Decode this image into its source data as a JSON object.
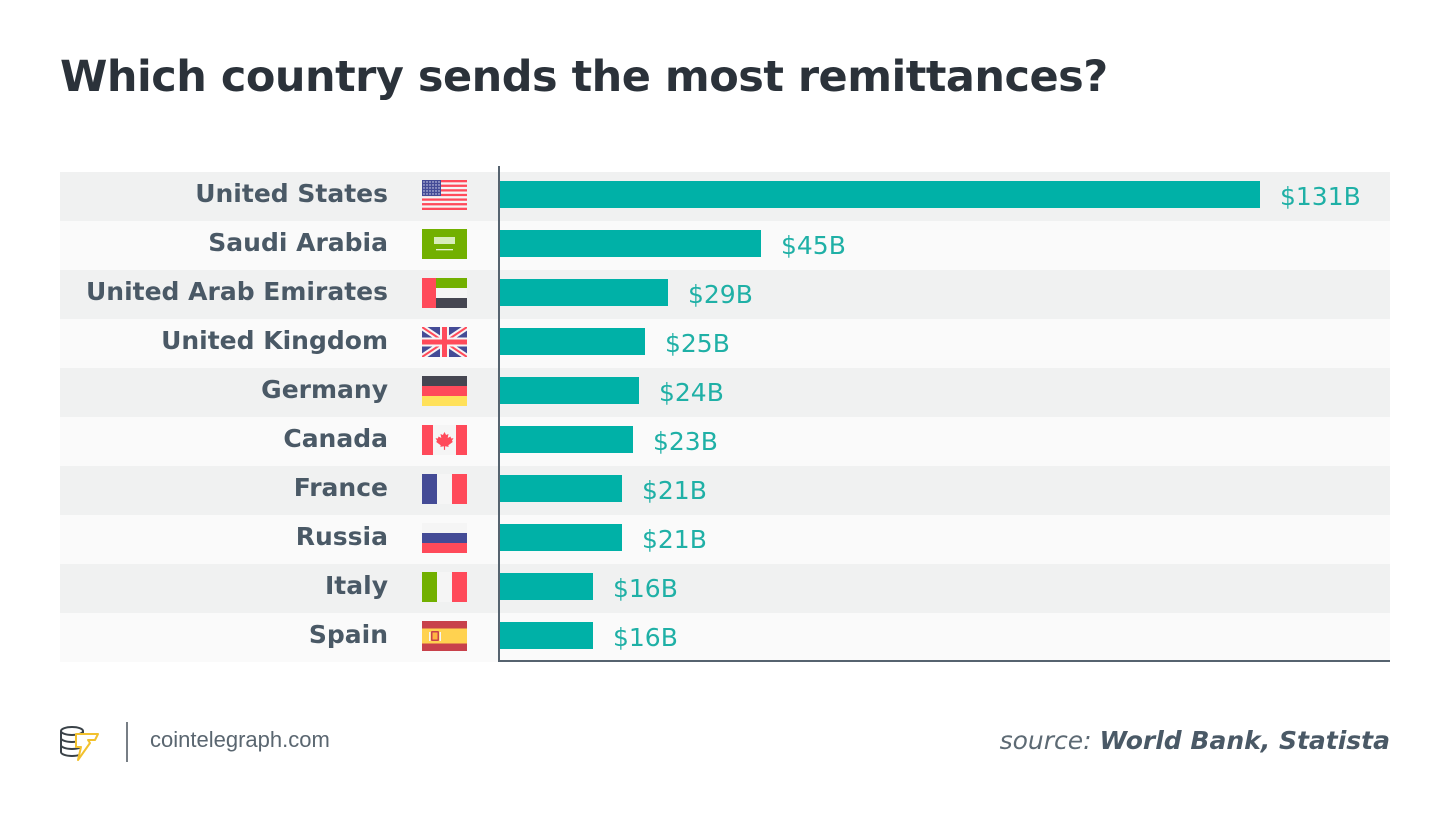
{
  "header": {
    "title": "Which country sends the most remittances?"
  },
  "footer": {
    "site": "cointelegraph.com",
    "source_label": "source: ",
    "source_value": "World Bank, Statista",
    "logo_icon": "cointelegraph-logo-icon"
  },
  "colors": {
    "bar": "#00b1a7",
    "value_text": "#1fb0a6",
    "label_text": "#4a5966",
    "title_text": "#2b323a",
    "axis": "#56636f",
    "row_odd": "#f0f1f1",
    "row_even": "#fafafa"
  },
  "chart_data": {
    "type": "bar",
    "orientation": "horizontal",
    "title": "Which country sends the most remittances?",
    "xlabel": "",
    "ylabel": "",
    "unit": "USD billions",
    "xlim": [
      0,
      131
    ],
    "grid": false,
    "legend": "none",
    "categories": [
      "United States",
      "Saudi Arabia",
      "United Arab Emirates",
      "United Kingdom",
      "Germany",
      "Canada",
      "France",
      "Russia",
      "Italy",
      "Spain"
    ],
    "values": [
      131,
      45,
      29,
      25,
      24,
      23,
      21,
      21,
      16,
      16
    ],
    "value_labels": [
      "$131B",
      "$45B",
      "$29B",
      "$25B",
      "$24B",
      "$23B",
      "$21B",
      "$21B",
      "$16B",
      "$16B"
    ],
    "flags": [
      "us-flag-icon",
      "saudi-arabia-flag-icon",
      "uae-flag-icon",
      "uk-flag-icon",
      "germany-flag-icon",
      "canada-flag-icon",
      "france-flag-icon",
      "russia-flag-icon",
      "italy-flag-icon",
      "spain-flag-icon"
    ],
    "source": "World Bank, Statista"
  }
}
